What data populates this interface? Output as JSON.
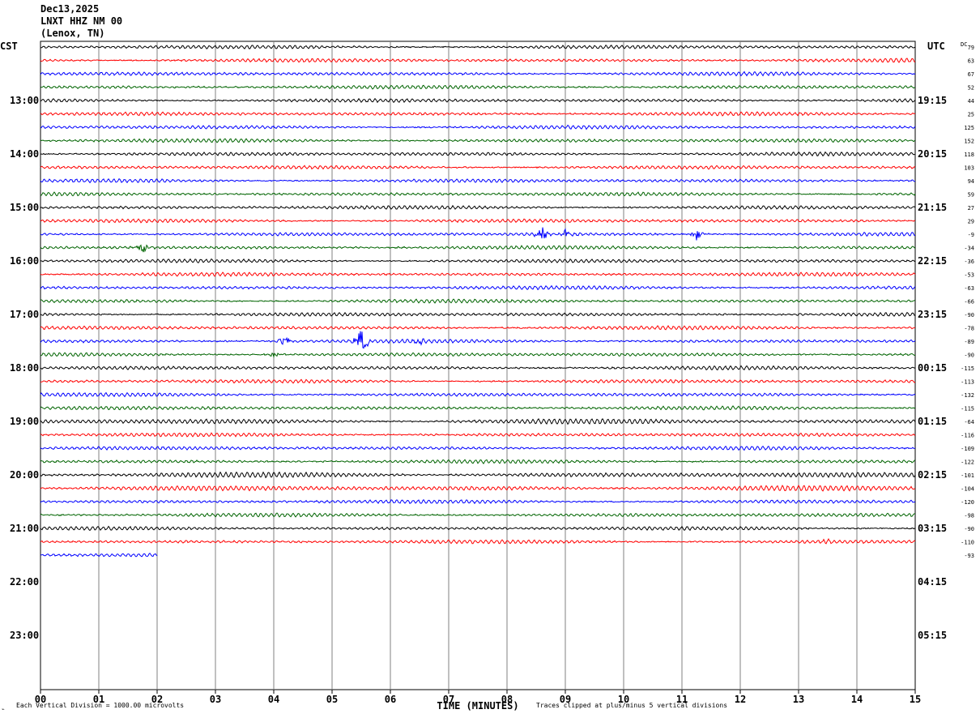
{
  "header": {
    "date": "Dec13,2025",
    "station": "LNXT HHZ NM 00",
    "location": "(Lenox, TN)"
  },
  "chart_data": {
    "type": "line",
    "left_axis_label": "CST",
    "right_axis_label": "UTC",
    "dc_label": "DC",
    "xlabel": "TIME (MINUTES)",
    "x_ticks": [
      "00",
      "01",
      "02",
      "03",
      "04",
      "05",
      "06",
      "07",
      "08",
      "09",
      "10",
      "11",
      "12",
      "13",
      "14",
      "15"
    ],
    "xlim": [
      0,
      15
    ],
    "trace_count_per_hour": 4,
    "first_hour_offset_traces": 4,
    "cst_hour_labels": [
      "13:00",
      "14:00",
      "15:00",
      "16:00",
      "17:00",
      "18:00",
      "19:00",
      "20:00",
      "21:00",
      "22:00",
      "23:00"
    ],
    "utc_hour_labels": [
      "19:15",
      "20:15",
      "21:15",
      "22:15",
      "23:15",
      "00:15",
      "01:15",
      "02:15",
      "03:15",
      "04:15",
      "05:15"
    ],
    "trace_colors": [
      "#000000",
      "#ff0000",
      "#0000ff",
      "#006400"
    ],
    "dc_offsets": [
      "79",
      "63",
      "67",
      "52",
      "44",
      "25",
      "125",
      "152",
      "118",
      "103",
      "94",
      "59",
      "27",
      "29",
      "-9",
      "-34",
      "-36",
      "-53",
      "-63",
      "-66",
      "-90",
      "-78",
      "-89",
      "-90",
      "-115",
      "-113",
      "-132",
      "-115",
      "-64",
      "-116",
      "-109",
      "-122",
      "-101",
      "-104",
      "-120",
      "-98",
      "-90",
      "-110",
      "-93"
    ],
    "trace_amplitude": [
      2,
      2,
      2,
      2,
      2,
      2,
      2,
      2,
      2,
      2,
      2,
      2,
      2,
      2,
      2,
      2,
      2,
      2,
      2,
      2,
      2,
      2,
      2,
      2,
      2,
      2,
      2,
      2,
      3,
      2,
      2,
      2,
      3,
      3,
      2,
      2,
      2,
      2,
      2
    ],
    "last_trace_end_minute": 2,
    "events": [
      {
        "trace": 14,
        "minute": 8.6,
        "amplitude": 10
      },
      {
        "trace": 14,
        "minute": 9.0,
        "amplitude": 6
      },
      {
        "trace": 14,
        "minute": 11.25,
        "amplitude": 8
      },
      {
        "trace": 15,
        "minute": 1.75,
        "amplitude": 7
      },
      {
        "trace": 22,
        "minute": 4.2,
        "amplitude": 8
      },
      {
        "trace": 22,
        "minute": 5.5,
        "amplitude": 20
      },
      {
        "trace": 22,
        "minute": 6.5,
        "amplitude": 4
      },
      {
        "trace": 23,
        "minute": 4.0,
        "amplitude": 5
      },
      {
        "trace": 37,
        "minute": 13.5,
        "amplitude": 5
      }
    ],
    "footer_left": "Each Vertical Division = 1000.00 microvolts",
    "footer_right": "Traces clipped at plus/minus 5 vertical divisions"
  }
}
